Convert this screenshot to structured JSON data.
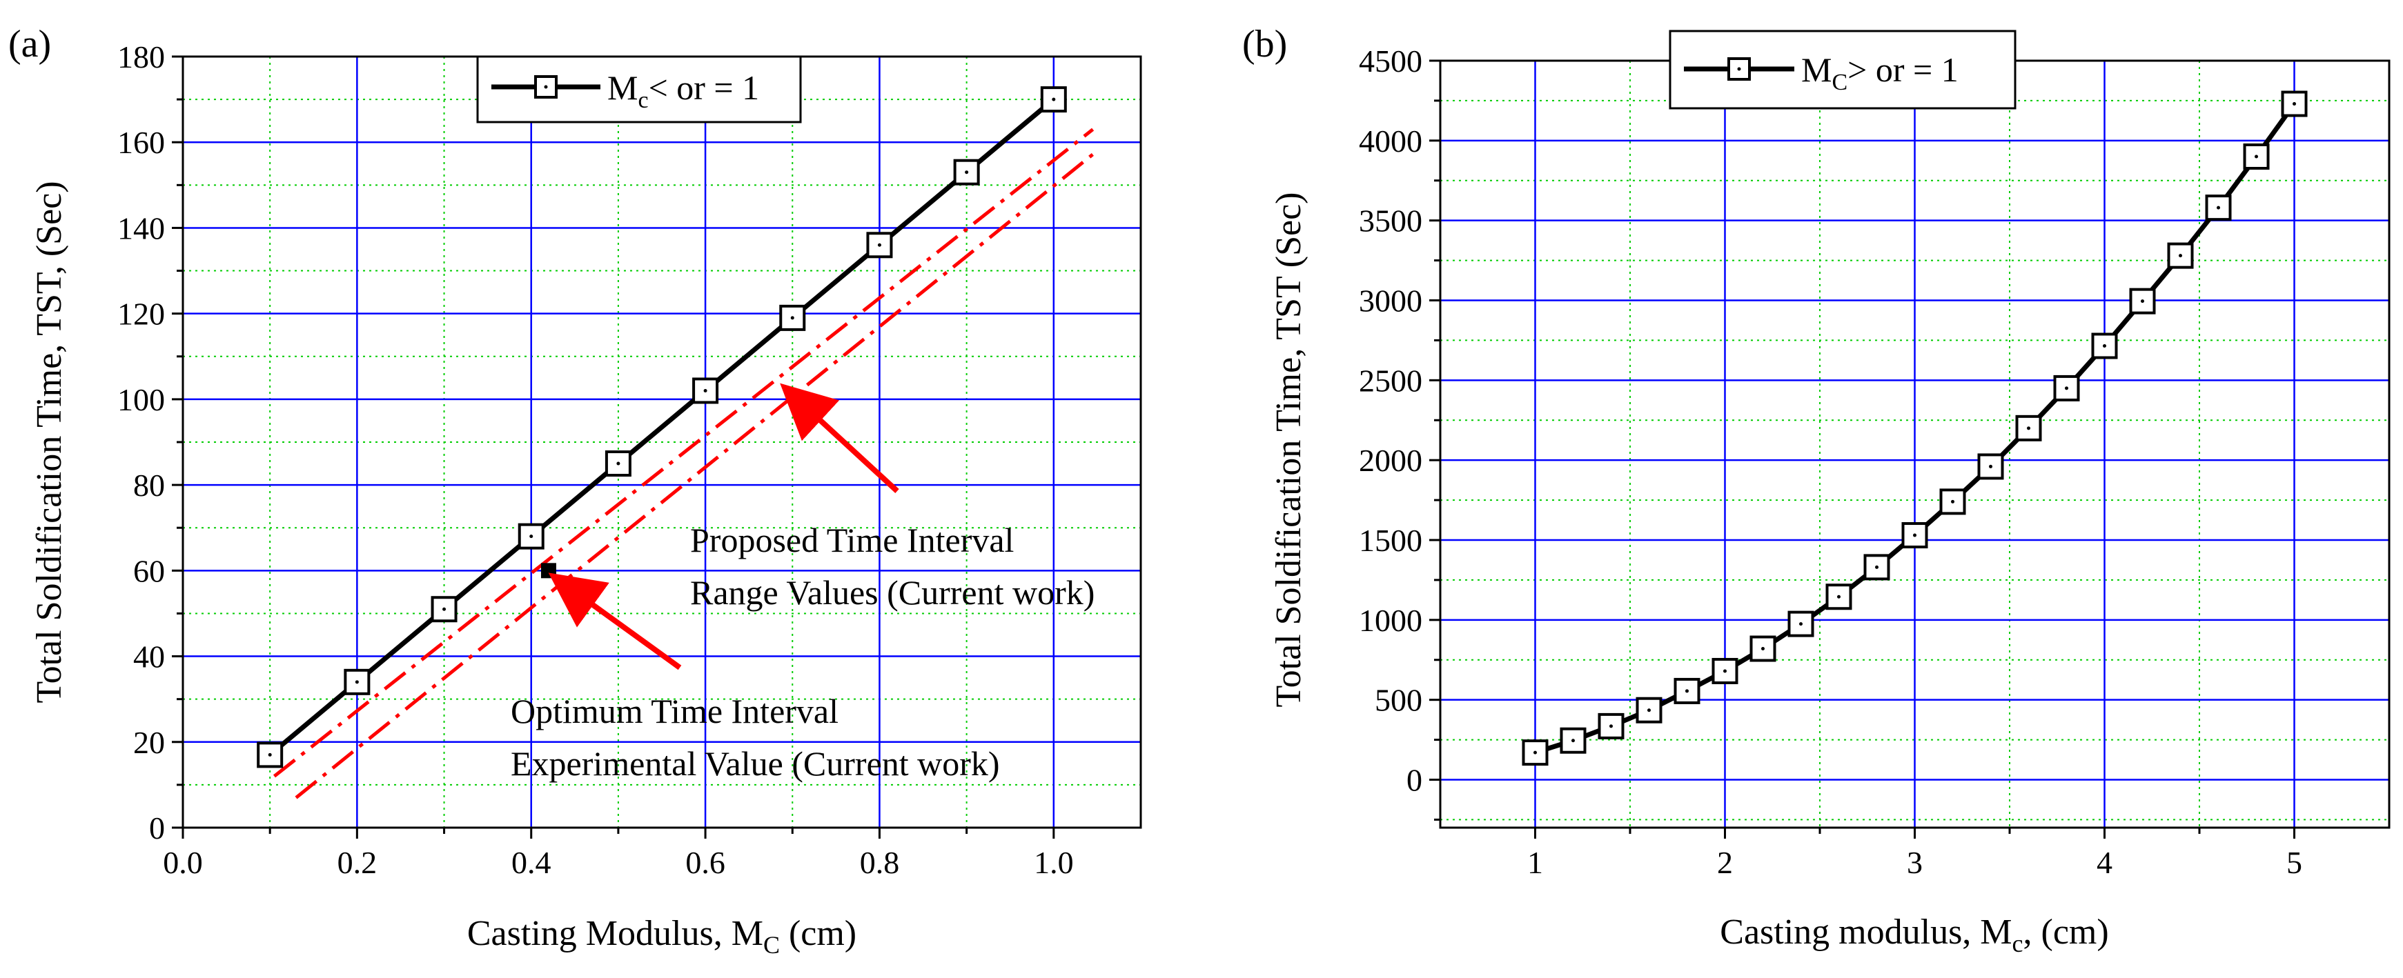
{
  "chart_data": [
    {
      "panel_label": "(a)",
      "type": "line",
      "xlabel": "Casting Modulus, M",
      "xlabel_sub": "C",
      "xlabel_tail": " (cm)",
      "ylabel": "Total Soldification Time, TST, (Sec)",
      "xlim": [
        0.0,
        1.1
      ],
      "ylim": [
        0,
        180
      ],
      "xticks": [
        0.0,
        0.2,
        0.4,
        0.6,
        0.8,
        1.0
      ],
      "xtick_labels": [
        "0.0",
        "0.2",
        "0.4",
        "0.6",
        "0.8",
        "1.0"
      ],
      "yticks": [
        0,
        20,
        40,
        60,
        80,
        100,
        120,
        140,
        160,
        180
      ],
      "ytick_labels": [
        "0",
        "20",
        "40",
        "60",
        "80",
        "100",
        "120",
        "140",
        "160",
        "180"
      ],
      "series": [
        {
          "name": "M",
          "name_sub": "c",
          "name_tail": "< or = 1",
          "style": "black-line-square-markers",
          "x": [
            0.1,
            0.2,
            0.3,
            0.4,
            0.5,
            0.6,
            0.7,
            0.8,
            0.9,
            1.0
          ],
          "y": [
            17,
            34,
            51,
            68,
            85,
            102,
            119,
            136,
            153,
            170
          ]
        }
      ],
      "range_lines": [
        {
          "name": "upper-bound",
          "color": "#ff0000",
          "x": [
            0.105,
            1.045
          ],
          "y": [
            12,
            163
          ]
        },
        {
          "name": "lower-bound",
          "color": "#ff0000",
          "x": [
            0.13,
            1.05
          ],
          "y": [
            7,
            158
          ]
        }
      ],
      "experimental_point": {
        "x": 0.42,
        "y": 60
      },
      "annotations": [
        {
          "lines": [
            "Proposed Time Interval",
            "Range Values (Current work)"
          ],
          "arrow_target": [
            0.695,
            102
          ],
          "arrow_color": "#ff0000"
        },
        {
          "lines": [
            "Optimum Time Interval",
            "Experimental Value (Current work)"
          ],
          "arrow_target": [
            0.43,
            58
          ],
          "arrow_color": "#ff0000"
        }
      ]
    },
    {
      "panel_label": "(b)",
      "type": "line",
      "xlabel": "Casting modulus, M",
      "xlabel_sub": "c",
      "xlabel_tail": ", (cm)",
      "ylabel": "Total Soldification Time, TST (Sec)",
      "xlim": [
        0.5,
        5.5
      ],
      "ylim": [
        -300,
        4500
      ],
      "xticks": [
        1,
        2,
        3,
        4,
        5
      ],
      "xtick_labels": [
        "1",
        "2",
        "3",
        "4",
        "5"
      ],
      "yticks": [
        0,
        500,
        1000,
        1500,
        2000,
        2500,
        3000,
        3500,
        4000,
        4500
      ],
      "ytick_labels": [
        "0",
        "500",
        "1000",
        "1500",
        "2000",
        "2500",
        "3000",
        "3500",
        "4000",
        "4500"
      ],
      "series": [
        {
          "name": "M",
          "name_sub": "C",
          "name_tail": "> or = 1",
          "style": "black-line-square-markers",
          "x": [
            1.0,
            1.2,
            1.4,
            1.6,
            1.8,
            2.0,
            2.2,
            2.4,
            2.6,
            2.8,
            3.0,
            3.2,
            3.4,
            3.6,
            3.8,
            4.0,
            4.2,
            4.4,
            4.6,
            4.8,
            5.0
          ],
          "y": [
            170,
            245,
            335,
            435,
            555,
            680,
            820,
            975,
            1145,
            1330,
            1530,
            1740,
            1960,
            2200,
            2450,
            2715,
            2995,
            3280,
            3580,
            3900,
            4230
          ]
        }
      ]
    }
  ]
}
